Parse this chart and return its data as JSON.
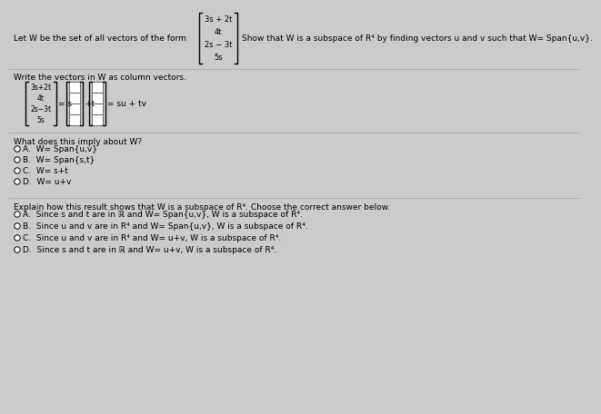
{
  "bg_color": "#cccbcb",
  "text_color": "#000000",
  "title_line": "Let W be the set of all vectors of the form",
  "show_text": "Show that W is a subspace of R⁴ by finding vectors u and v such that W= Span{u,v}.",
  "vector_entries": [
    "3s + 2t",
    "4t",
    "2s − 3t",
    "5s"
  ],
  "write_label": "Write the vectors in W as column vectors.",
  "lhs_label": [
    "3s+2t",
    "4t",
    "2s−3t",
    "5s"
  ],
  "what_label": "What does this imply about W?",
  "options_what": [
    "A.  W= Span{u,v}",
    "B.  W= Span{s,t}",
    "C.  W= s+t",
    "D.  W= u+v"
  ],
  "explain_label": "Explain how this result shows that W is a subspace of R⁴. Choose the correct answer below.",
  "options_explain": [
    "A.  Since s and t are in ℝ and W= Span{u,v}, W is a subspace of R⁴.",
    "B.  Since u and v are in R⁴ and W= Span{u,v}, W is a subspace of R⁴.",
    "C.  Since u and v are in R⁴ and W= u+v, W is a subspace of R⁴.",
    "D.  Since s and t are in ℝ and W= u+v, W is a subspace of R⁴."
  ]
}
